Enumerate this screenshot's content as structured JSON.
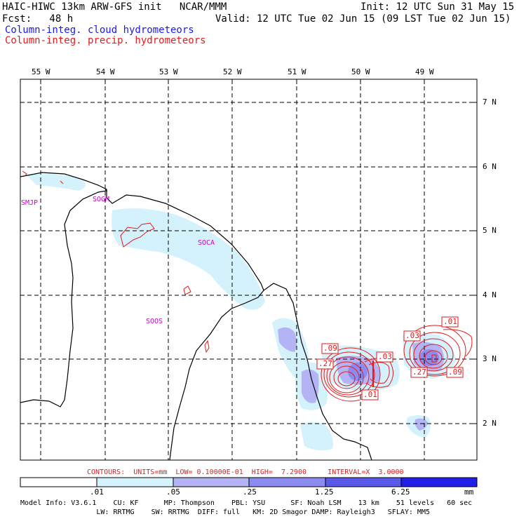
{
  "header": {
    "model_line": "HAIC-HIWC 13km ARW-GFS init   NCAR/MMM",
    "init_line": "Init: 12 UTC Sun 31 May 15",
    "fcst_line": "Fcst:   48 h",
    "valid_line": "Valid: 12 UTC Tue 02 Jun 15 (09 LST Tue 02 Jun 15)",
    "legend_cloud": "Column-integ. cloud hydrometeors",
    "legend_precip": "Column-integ. precip. hydrometeors",
    "legend_cloud_color": "#1a1ae6",
    "legend_precip_color": "#e61a1a"
  },
  "map": {
    "lon_labels": [
      "55 W",
      "54 W",
      "53 W",
      "52 W",
      "51 W",
      "50 W",
      "49 W"
    ],
    "lat_labels": [
      "7 N",
      "6 N",
      "5 N",
      "4 N",
      "3 N",
      "2 N"
    ],
    "stations": [
      "SMJP",
      "SOGM",
      "SOCA",
      "SOOS"
    ],
    "station_color": "#cc00cc",
    "contour_labels": [
      ".09",
      ".03",
      ".27",
      ".01",
      ".03",
      ".01",
      ".27",
      ".09"
    ]
  },
  "footer": {
    "contours_line": "CONTOURS:  UNITS=mm  LOW= 0.10000E-01  HIGH=  7.2900     INTERVAL=X  3.0000",
    "colorbar_ticks": [
      ".01",
      ".05",
      ".25",
      "1.25",
      "6.25"
    ],
    "colorbar_unit": "mm",
    "colorbar_colors": [
      "#ffffff",
      "#d4f2fc",
      "#b4b4f4",
      "#8c8cf0",
      "#5a5aea",
      "#2020e8"
    ],
    "model_info_1": "Model Info: V3.6.1    CU: KF      MP: Thompson    PBL: YSU      SF: Noah LSM    13 km    51 levels   60 sec",
    "model_info_2": "                  LW: RRTMG    SW: RRTMG  DIFF: full   KM: 2D Smagor DAMP: Rayleigh3   SFLAY: MM5"
  }
}
